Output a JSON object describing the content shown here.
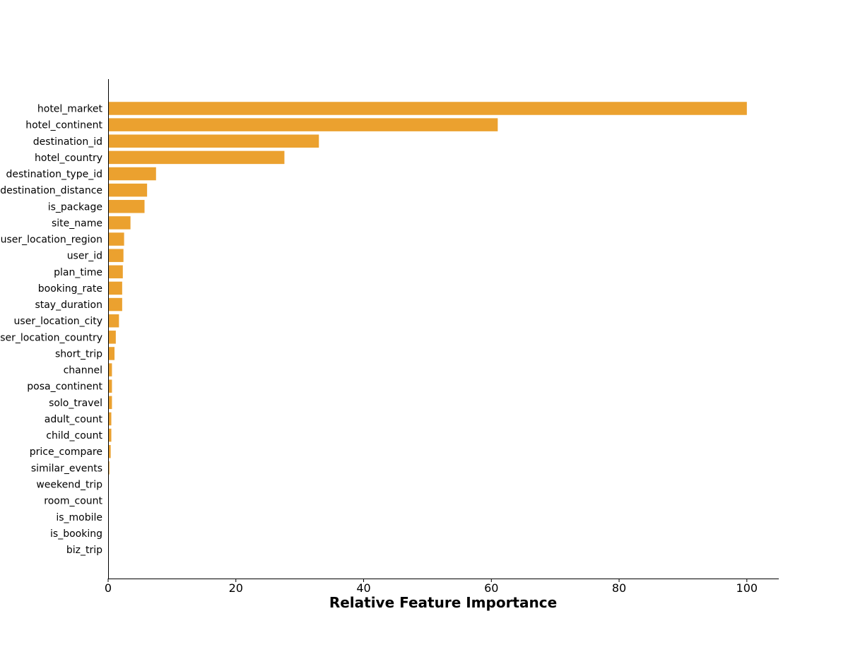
{
  "chart_data": {
    "type": "bar",
    "orientation": "horizontal",
    "title": "",
    "xlabel": "Relative Feature Importance",
    "ylabel": "",
    "xlim": [
      0,
      105
    ],
    "xticks": [
      0,
      20,
      40,
      60,
      80,
      100
    ],
    "grid": false,
    "bar_color": "#eba12f",
    "categories": [
      "hotel_market",
      "hotel_continent",
      "destination_id",
      "hotel_country",
      "destination_type_id",
      "destination_distance",
      "is_package",
      "site_name",
      "user_location_region",
      "user_id",
      "plan_time",
      "booking_rate",
      "stay_duration",
      "user_location_city",
      "user_location_country",
      "short_trip",
      "channel",
      "posa_continent",
      "solo_travel",
      "adult_count",
      "child_count",
      "price_compare",
      "similar_events",
      "weekend_trip",
      "room_count",
      "is_mobile",
      "is_booking",
      "biz_trip"
    ],
    "values": [
      100,
      61,
      33,
      27.6,
      7.5,
      6.1,
      5.7,
      3.5,
      2.5,
      2.4,
      2.3,
      2.2,
      2.2,
      1.7,
      1.2,
      1.0,
      0.6,
      0.6,
      0.6,
      0.5,
      0.5,
      0.4,
      0.2,
      0.1,
      0.1,
      0.05,
      0.05,
      0.05
    ]
  }
}
